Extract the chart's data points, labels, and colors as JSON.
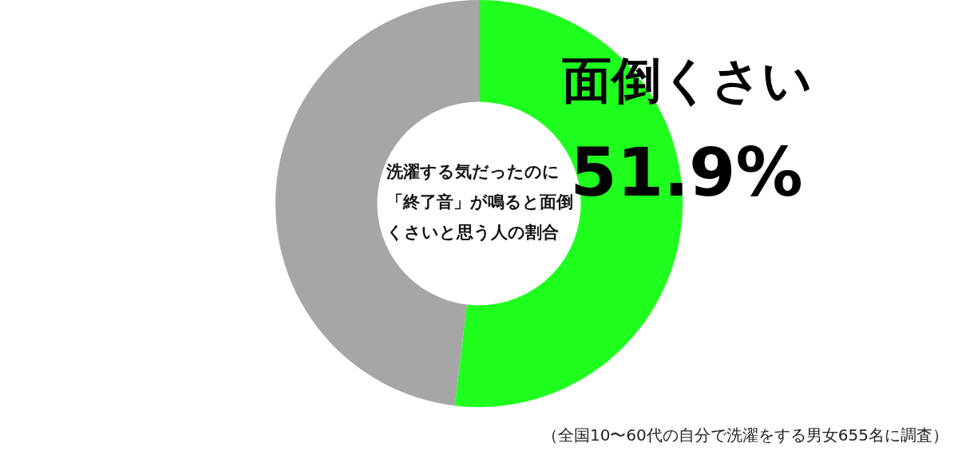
{
  "chart_data": {
    "type": "donut",
    "title": "洗濯する気だったのに「終了音」が鳴ると面倒くさいと思う人の割合",
    "categories": [
      "面倒くさい",
      null
    ],
    "values": [
      51.9,
      48.1
    ],
    "colors": [
      "#1eff1e",
      "#a6a6a6"
    ],
    "value_labels": [
      "51.9%",
      null
    ],
    "legend": false,
    "annotations": [
      "（全国10〜60代の自分で洗濯をする男女655名に調査）"
    ]
  }
}
